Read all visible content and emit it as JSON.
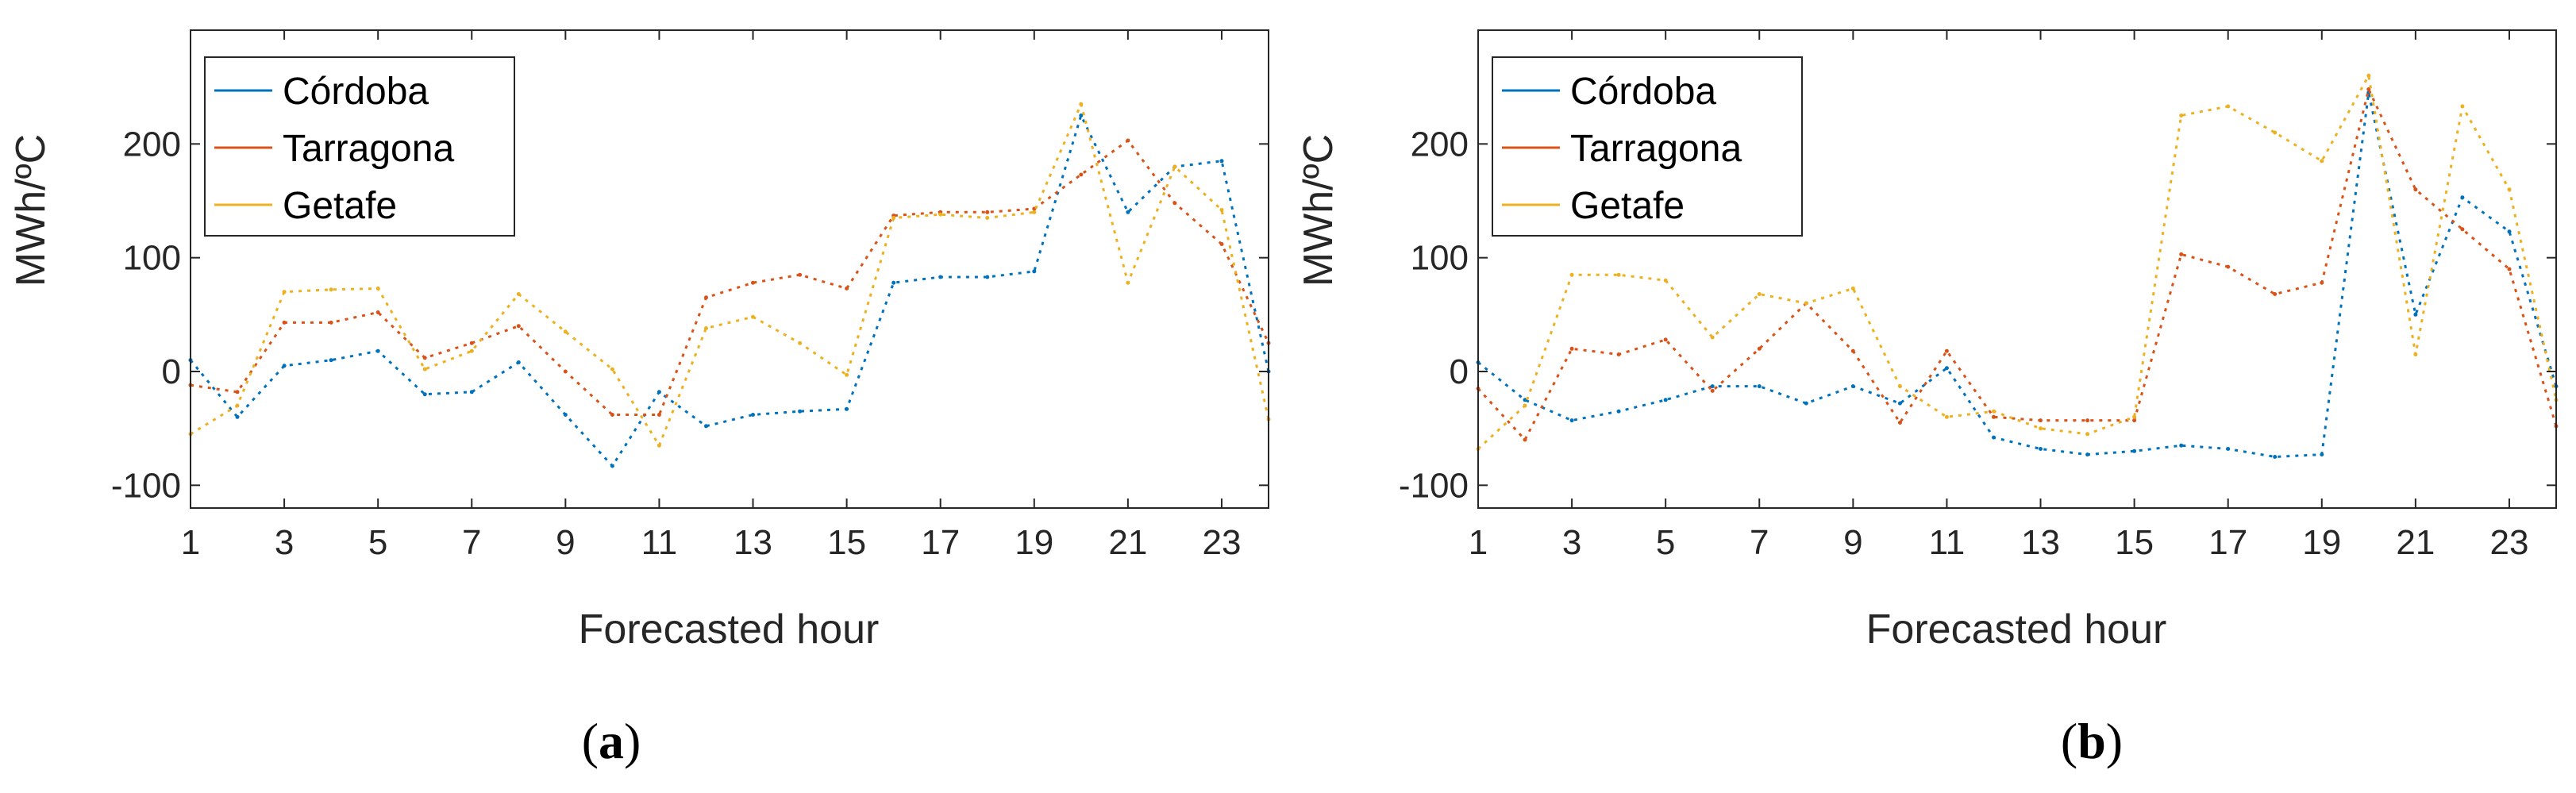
{
  "colors": {
    "Córdoba": "#0072BD",
    "Tarragona": "#D95319",
    "Getafe": "#EDB120",
    "axis": "#262626"
  },
  "chart_data": [
    {
      "type": "line",
      "caption": "a",
      "xlabel": "Forecasted hour",
      "ylabel": "MWh/ºC",
      "xlim": [
        1,
        24
      ],
      "ylim": [
        -120,
        300
      ],
      "xticks": [
        1,
        3,
        5,
        7,
        9,
        11,
        13,
        15,
        17,
        19,
        21,
        23
      ],
      "yticks": [
        -100,
        0,
        100,
        200
      ],
      "legend": "top-left",
      "grid": false,
      "x": [
        1,
        2,
        3,
        4,
        5,
        6,
        7,
        8,
        9,
        10,
        11,
        12,
        13,
        14,
        15,
        16,
        17,
        18,
        19,
        20,
        21,
        22,
        23,
        24
      ],
      "series": [
        {
          "name": "Córdoba",
          "values": [
            10,
            -40,
            5,
            10,
            18,
            -20,
            -18,
            8,
            -38,
            -83,
            -18,
            -48,
            -38,
            -35,
            -33,
            78,
            83,
            83,
            88,
            225,
            140,
            180,
            185,
            0
          ]
        },
        {
          "name": "Tarragona",
          "values": [
            -12,
            -18,
            43,
            43,
            52,
            12,
            25,
            40,
            0,
            -38,
            -38,
            65,
            78,
            85,
            73,
            137,
            140,
            140,
            143,
            173,
            203,
            148,
            112,
            25
          ]
        },
        {
          "name": "Getafe",
          "values": [
            -55,
            -30,
            70,
            72,
            73,
            2,
            18,
            68,
            35,
            2,
            -65,
            38,
            48,
            25,
            -3,
            135,
            138,
            135,
            140,
            235,
            78,
            180,
            142,
            -42
          ]
        }
      ]
    },
    {
      "type": "line",
      "caption": "b",
      "xlabel": "Forecasted hour",
      "ylabel": "MWh/ºC",
      "xlim": [
        1,
        24
      ],
      "ylim": [
        -120,
        300
      ],
      "xticks": [
        1,
        3,
        5,
        7,
        9,
        11,
        13,
        15,
        17,
        19,
        21,
        23
      ],
      "yticks": [
        -100,
        0,
        100,
        200
      ],
      "legend": "top-left",
      "grid": false,
      "x": [
        1,
        2,
        3,
        4,
        5,
        6,
        7,
        8,
        9,
        10,
        11,
        12,
        13,
        14,
        15,
        16,
        17,
        18,
        19,
        20,
        21,
        22,
        23,
        24
      ],
      "series": [
        {
          "name": "Córdoba",
          "values": [
            8,
            -25,
            -43,
            -35,
            -25,
            -13,
            -13,
            -28,
            -13,
            -28,
            3,
            -58,
            -68,
            -73,
            -70,
            -65,
            -68,
            -75,
            -73,
            245,
            50,
            153,
            123,
            -13
          ]
        },
        {
          "name": "Tarragona",
          "values": [
            -15,
            -60,
            20,
            15,
            28,
            -17,
            20,
            60,
            18,
            -45,
            18,
            -40,
            -43,
            -43,
            -43,
            103,
            92,
            68,
            78,
            248,
            160,
            125,
            90,
            -48
          ]
        },
        {
          "name": "Getafe",
          "values": [
            -68,
            -30,
            85,
            85,
            80,
            30,
            68,
            60,
            73,
            -13,
            -40,
            -35,
            -50,
            -55,
            -40,
            225,
            233,
            210,
            185,
            260,
            15,
            233,
            160,
            -25
          ]
        }
      ]
    }
  ]
}
